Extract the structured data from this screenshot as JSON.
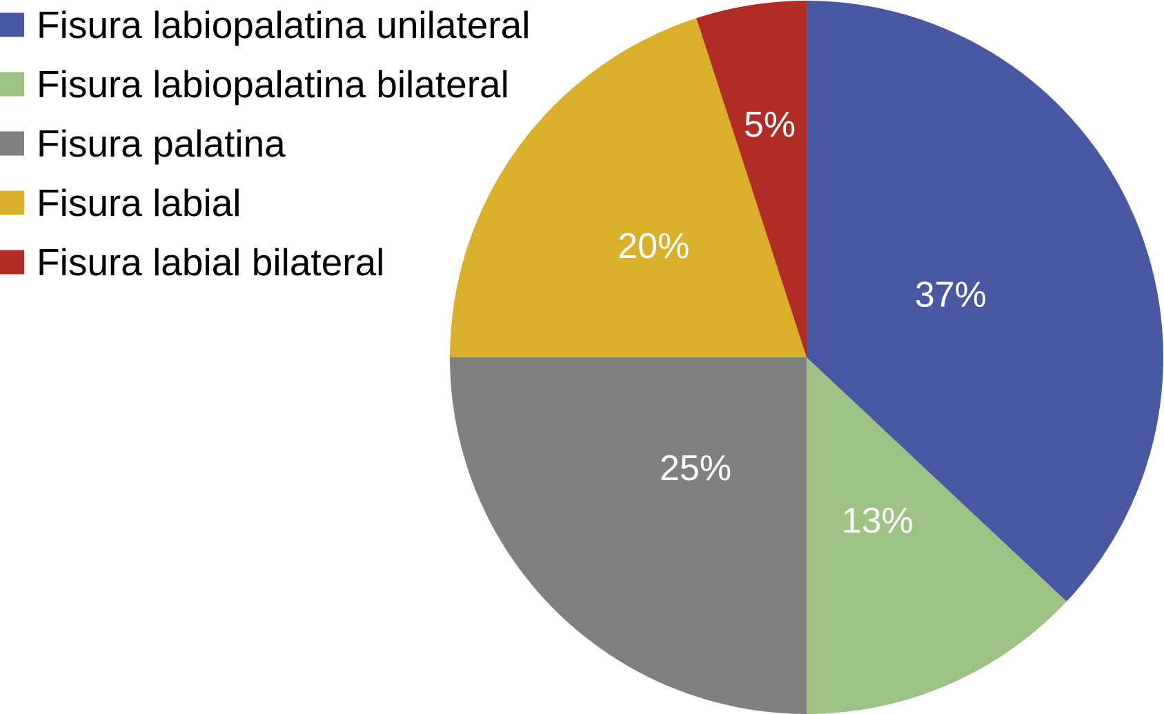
{
  "chart_data": {
    "type": "pie",
    "title": "",
    "start_angle": "12 o'clock",
    "direction": "clockwise",
    "legend_position": "top-left",
    "value_unit": "%",
    "slices": [
      {
        "label": "Fisura labiopalatina unilateral",
        "value": 37,
        "display": "37%",
        "color": "#4958a3"
      },
      {
        "label": "Fisura labiopalatina bilateral",
        "value": 13,
        "display": "13%",
        "color": "#9dc384"
      },
      {
        "label": "Fisura palatina",
        "value": 25,
        "display": "25%",
        "color": "#808080"
      },
      {
        "label": "Fisura labial",
        "value": 20,
        "display": "20%",
        "color": "#dab02b"
      },
      {
        "label": "Fisura labial bilateral",
        "value": 5,
        "display": "5%",
        "color": "#b02c24"
      }
    ]
  }
}
